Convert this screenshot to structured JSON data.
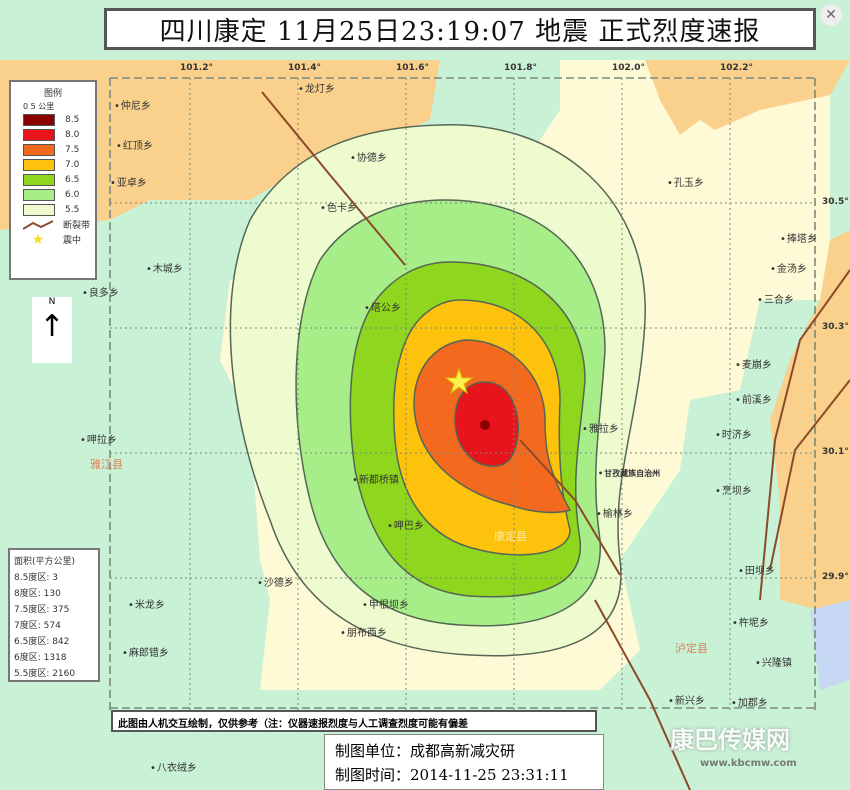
{
  "title": "四川康定 11月25日23:19:07 地震 正式烈度速报",
  "close_icon": "close-icon",
  "colors": {
    "i85": "#8b0000",
    "i80": "#e8141c",
    "i75": "#f36a1e",
    "i70": "#fdc20c",
    "i65": "#8fd61e",
    "i60": "#a8ee88",
    "i55": "#edfbcf",
    "fault": "#8b4a2a",
    "epicenter": "#fff050"
  },
  "legend": {
    "title": "图例",
    "scale": "0  5  公里",
    "items": [
      "8.5",
      "8.0",
      "7.5",
      "7.0",
      "6.5",
      "6.0",
      "5.5"
    ],
    "fault": "断裂带",
    "epicenter": "震中"
  },
  "north": "N",
  "area": {
    "title": "面积(平方公里)",
    "rows": [
      "8.5度区: 3",
      "8度区:   130",
      "7.5度区: 375",
      "7度区:   574",
      "6.5度区: 842",
      "6度区:   1318",
      "5.5度区: 2160"
    ]
  },
  "lon_ticks": [
    "101.2°",
    "101.4°",
    "101.6°",
    "101.8°",
    "102.0°",
    "102.2°"
  ],
  "lat_ticks": [
    "30.5°",
    "30.3°",
    "30.1°",
    "29.9°"
  ],
  "places": [
    "仲尼乡",
    "红顶乡",
    "亚卓乡",
    "龙灯乡",
    "协德乡",
    "色卡乡",
    "木城乡",
    "良多乡",
    "塔公乡",
    "孔玉乡",
    "捧塔乡",
    "金汤乡",
    "三合乡",
    "麦崩乡",
    "前溪乡",
    "时济乡",
    "雅拉乡",
    "甘孜藏族自治州",
    "榆林乡",
    "烹坝乡",
    "田坝乡",
    "杵坭乡",
    "兴隆镇",
    "新兴乡",
    "加郡乡",
    "呷拉乡",
    "新都桥镇",
    "呷巴乡",
    "沙德乡",
    "米龙乡",
    "甲根坝乡",
    "朋布西乡",
    "麻郎错乡",
    "八衣绒乡"
  ],
  "counties": [
    "雅江县",
    "康定县",
    "泸定县"
  ],
  "note": "此图由人机交互绘制，仅供参考（注：仪器速报烈度与人工调查烈度可能有偏差",
  "maker": {
    "unit": "制图单位：成都高新减灾研",
    "time": "制图时间：2014-11-25 23:31:11"
  },
  "watermark": {
    "name": "康巴传媒网",
    "url": "www.kbcmw.com"
  }
}
